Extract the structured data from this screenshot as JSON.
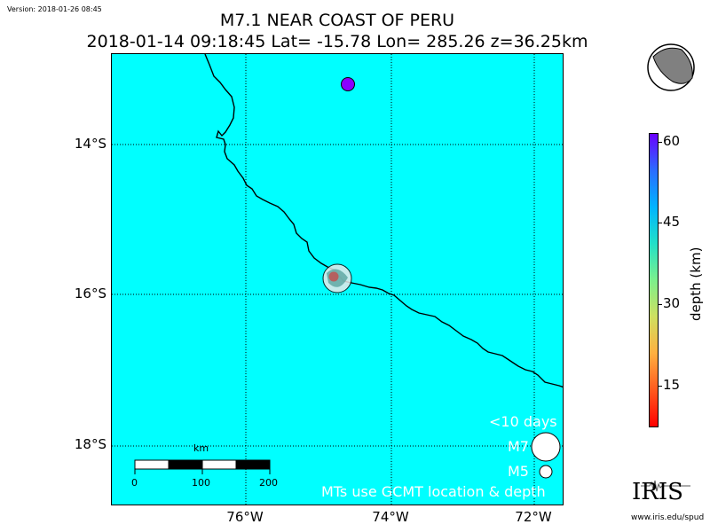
{
  "version": "Version: 2018-01-26 08:45",
  "title": "M7.1 NEAR COAST OF PERU",
  "subtitle": "2018-01-14 09:18:45 Lat= -15.78 Lon= 285.26 z=36.25km",
  "map": {
    "background_color": "#00ffff",
    "lat_labels": [
      "14°S",
      "16°S",
      "18°S"
    ],
    "lon_labels": [
      "76°W",
      "74°W",
      "72°W"
    ],
    "legend": {
      "title": "<10 days",
      "m7_label": "M7",
      "m5_label": "M5",
      "note": "MTs use GCMT location & depth"
    },
    "scale_bar": {
      "unit": "km",
      "ticks": [
        "0",
        "100",
        "200"
      ]
    }
  },
  "colorbar": {
    "title": "depth (km)",
    "ticks": [
      "60",
      "45",
      "30",
      "15"
    ]
  },
  "logo": {
    "name": "IRIS",
    "url": "www.iris.edu/spud"
  }
}
